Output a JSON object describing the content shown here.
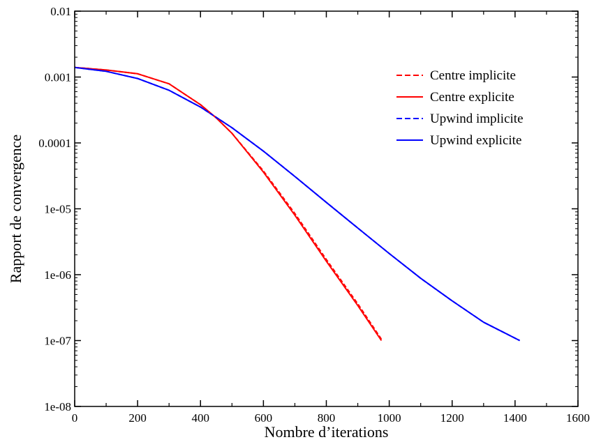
{
  "chart_data": {
    "type": "line",
    "title": "",
    "xlabel": "Nombre d’iterations",
    "ylabel": "Rapport de convergence",
    "xlim": [
      0,
      1600
    ],
    "ylim": [
      1e-08,
      0.01
    ],
    "yscale": "log",
    "grid": false,
    "legend_position": "top-right",
    "x_ticks": [
      {
        "value": 0,
        "label": "0"
      },
      {
        "value": 200,
        "label": "200"
      },
      {
        "value": 400,
        "label": "400"
      },
      {
        "value": 600,
        "label": "600"
      },
      {
        "value": 800,
        "label": "800"
      },
      {
        "value": 1000,
        "label": "1000"
      },
      {
        "value": 1200,
        "label": "1200"
      },
      {
        "value": 1400,
        "label": "1400"
      },
      {
        "value": 1600,
        "label": "1600"
      }
    ],
    "y_ticks": [
      {
        "value": 1e-08,
        "label": "1e-08"
      },
      {
        "value": 1e-07,
        "label": "1e-07"
      },
      {
        "value": 1e-06,
        "label": "1e-06"
      },
      {
        "value": 1e-05,
        "label": "1e-05"
      },
      {
        "value": 0.0001,
        "label": "0.0001"
      },
      {
        "value": 0.001,
        "label": "0.001"
      },
      {
        "value": 0.01,
        "label": "0.01"
      }
    ],
    "series": [
      {
        "name": "Centre implicite",
        "color": "#ff0000",
        "dashed": true,
        "x": [
          0,
          100,
          200,
          300,
          400,
          450,
          500,
          600,
          700,
          800,
          900,
          975
        ],
        "y": [
          0.0014,
          0.00128,
          0.00112,
          0.00079,
          0.00038,
          0.00024,
          0.00014,
          3.75e-05,
          8.5e-06,
          1.7e-06,
          3.6e-07,
          1.05e-07
        ]
      },
      {
        "name": "Centre explicite",
        "color": "#ff0000",
        "dashed": false,
        "x": [
          0,
          100,
          200,
          300,
          400,
          450,
          500,
          600,
          700,
          800,
          900,
          975
        ],
        "y": [
          0.0014,
          0.00128,
          0.00112,
          0.00079,
          0.00038,
          0.00024,
          0.00014,
          3.6e-05,
          8e-06,
          1.6e-06,
          3.4e-07,
          1e-07
        ]
      },
      {
        "name": "Upwind implicite",
        "color": "#0000ff",
        "dashed": true,
        "x": [
          0,
          100,
          200,
          300,
          400,
          500,
          600,
          700,
          800,
          900,
          1000,
          1100,
          1200,
          1300,
          1415
        ],
        "y": [
          0.0014,
          0.00122,
          0.00095,
          0.00063,
          0.00035,
          0.00017,
          7.5e-05,
          3.1e-05,
          1.25e-05,
          5.1e-06,
          2.1e-06,
          8.8e-07,
          4e-07,
          1.9e-07,
          1e-07
        ]
      },
      {
        "name": "Upwind explicite",
        "color": "#0000ff",
        "dashed": false,
        "x": [
          0,
          100,
          200,
          300,
          400,
          500,
          600,
          700,
          800,
          900,
          1000,
          1100,
          1200,
          1300,
          1415
        ],
        "y": [
          0.0014,
          0.00122,
          0.00095,
          0.00063,
          0.00035,
          0.00017,
          7.5e-05,
          3.1e-05,
          1.25e-05,
          5.1e-06,
          2.1e-06,
          8.8e-07,
          4e-07,
          1.9e-07,
          1e-07
        ]
      }
    ]
  }
}
